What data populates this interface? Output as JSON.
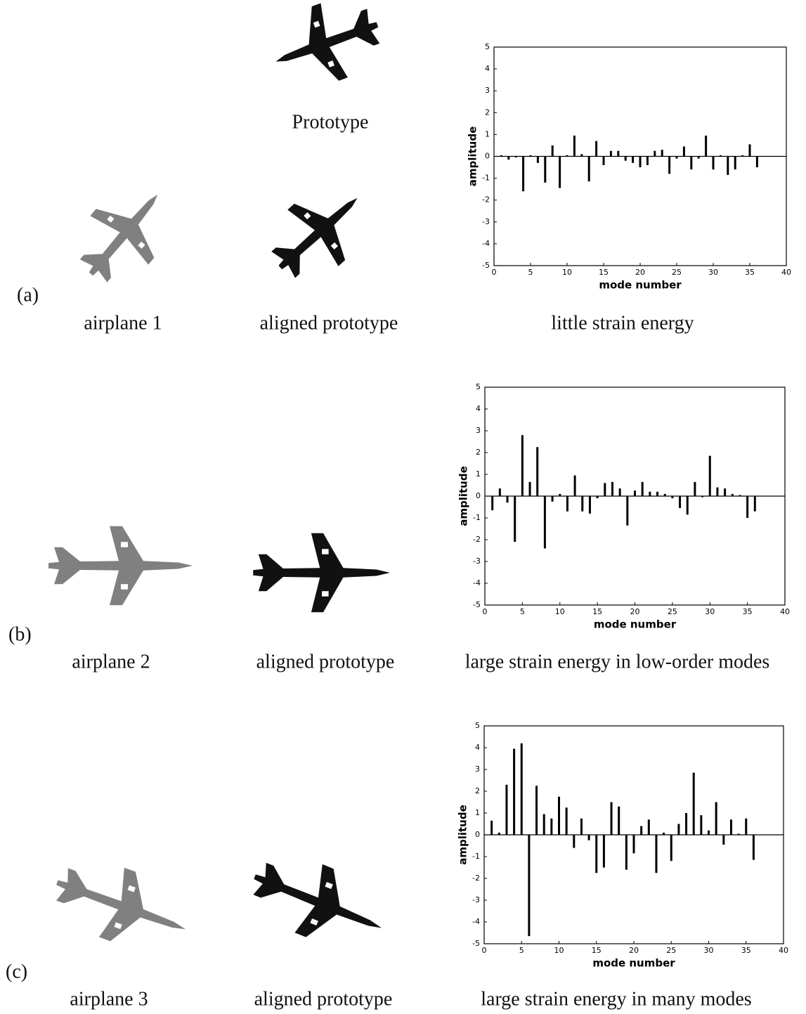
{
  "figure": {
    "prototype_label": "Prototype",
    "rows": [
      {
        "tag": "(a)",
        "airplane": "airplane 1",
        "aligned": "aligned prototype"
      },
      {
        "tag": "(b)",
        "airplane": "airplane 2",
        "aligned": "aligned prototype"
      },
      {
        "tag": "(c)",
        "airplane": "airplane 3",
        "aligned": "aligned prototype"
      }
    ]
  },
  "chart_data": [
    {
      "type": "bar",
      "title": "little strain energy",
      "x_label": "mode number",
      "y_label": "amplitude",
      "color": "#000000",
      "x": [
        1,
        2,
        3,
        4,
        5,
        6,
        7,
        8,
        9,
        10,
        11,
        12,
        13,
        14,
        15,
        16,
        17,
        18,
        19,
        20,
        21,
        22,
        23,
        24,
        25,
        26,
        27,
        28,
        29,
        30,
        31,
        32,
        33,
        34,
        35,
        36
      ],
      "values": [
        0.05,
        -0.15,
        -0.05,
        -1.6,
        0.05,
        -0.3,
        -1.2,
        0.5,
        -1.45,
        0.05,
        0.95,
        0.1,
        -1.15,
        0.7,
        -0.4,
        0.25,
        0.25,
        -0.2,
        -0.3,
        -0.5,
        -0.4,
        0.25,
        0.3,
        -0.8,
        -0.1,
        0.45,
        -0.6,
        -0.1,
        0.95,
        -0.6,
        0.05,
        -0.85,
        -0.6,
        0.05,
        0.55,
        -0.5
      ],
      "xlim": [
        0,
        40
      ],
      "xticks": [
        0,
        5,
        10,
        15,
        20,
        25,
        30,
        35,
        40
      ],
      "ylim": [
        -5,
        5
      ],
      "yticks": [
        -5,
        -4,
        -3,
        -2,
        -1,
        0,
        1,
        2,
        3,
        4,
        5
      ]
    },
    {
      "type": "bar",
      "title": "large strain energy in low-order modes",
      "x_label": "mode number",
      "y_label": "amplitude",
      "color": "#000000",
      "x": [
        1,
        2,
        3,
        4,
        5,
        6,
        7,
        8,
        9,
        10,
        11,
        12,
        13,
        14,
        15,
        16,
        17,
        18,
        19,
        20,
        21,
        22,
        23,
        24,
        25,
        26,
        27,
        28,
        29,
        30,
        31,
        32,
        33,
        34,
        35,
        36
      ],
      "values": [
        -0.65,
        0.35,
        -0.3,
        -2.1,
        2.8,
        0.65,
        2.25,
        -2.4,
        -0.25,
        0.1,
        -0.7,
        0.95,
        -0.7,
        -0.8,
        -0.1,
        0.6,
        0.65,
        0.35,
        -1.35,
        0.25,
        0.65,
        0.2,
        0.2,
        0.1,
        -0.1,
        -0.55,
        -0.85,
        0.65,
        -0.05,
        1.85,
        0.4,
        0.35,
        0.1,
        0.05,
        -1.0,
        -0.7
      ],
      "xlim": [
        0,
        40
      ],
      "xticks": [
        0,
        5,
        10,
        15,
        20,
        25,
        30,
        35,
        40
      ],
      "ylim": [
        -5,
        5
      ],
      "yticks": [
        -5,
        -4,
        -3,
        -2,
        -1,
        0,
        1,
        2,
        3,
        4,
        5
      ]
    },
    {
      "type": "bar",
      "title": "large strain energy in many modes",
      "x_label": "mode number",
      "y_label": "amplitude",
      "color": "#000000",
      "x": [
        1,
        2,
        3,
        4,
        5,
        6,
        7,
        8,
        9,
        10,
        11,
        12,
        13,
        14,
        15,
        16,
        17,
        18,
        19,
        20,
        21,
        22,
        23,
        24,
        25,
        26,
        27,
        28,
        29,
        30,
        31,
        32,
        33,
        34,
        35,
        36
      ],
      "values": [
        0.65,
        0.1,
        2.3,
        3.95,
        4.2,
        -4.65,
        2.25,
        0.95,
        0.75,
        1.75,
        1.25,
        -0.6,
        0.75,
        -0.25,
        -1.75,
        -1.5,
        1.5,
        1.3,
        -1.6,
        -0.85,
        0.4,
        0.7,
        -1.75,
        0.1,
        -1.2,
        0.5,
        1.0,
        2.85,
        0.9,
        0.2,
        1.5,
        -0.45,
        0.7,
        0.05,
        0.75,
        -1.15
      ],
      "xlim": [
        0,
        40
      ],
      "xticks": [
        0,
        5,
        10,
        15,
        20,
        25,
        30,
        35,
        40
      ],
      "ylim": [
        -5,
        5
      ],
      "yticks": [
        -5,
        -4,
        -3,
        -2,
        -1,
        0,
        1,
        2,
        3,
        4,
        5
      ]
    }
  ]
}
